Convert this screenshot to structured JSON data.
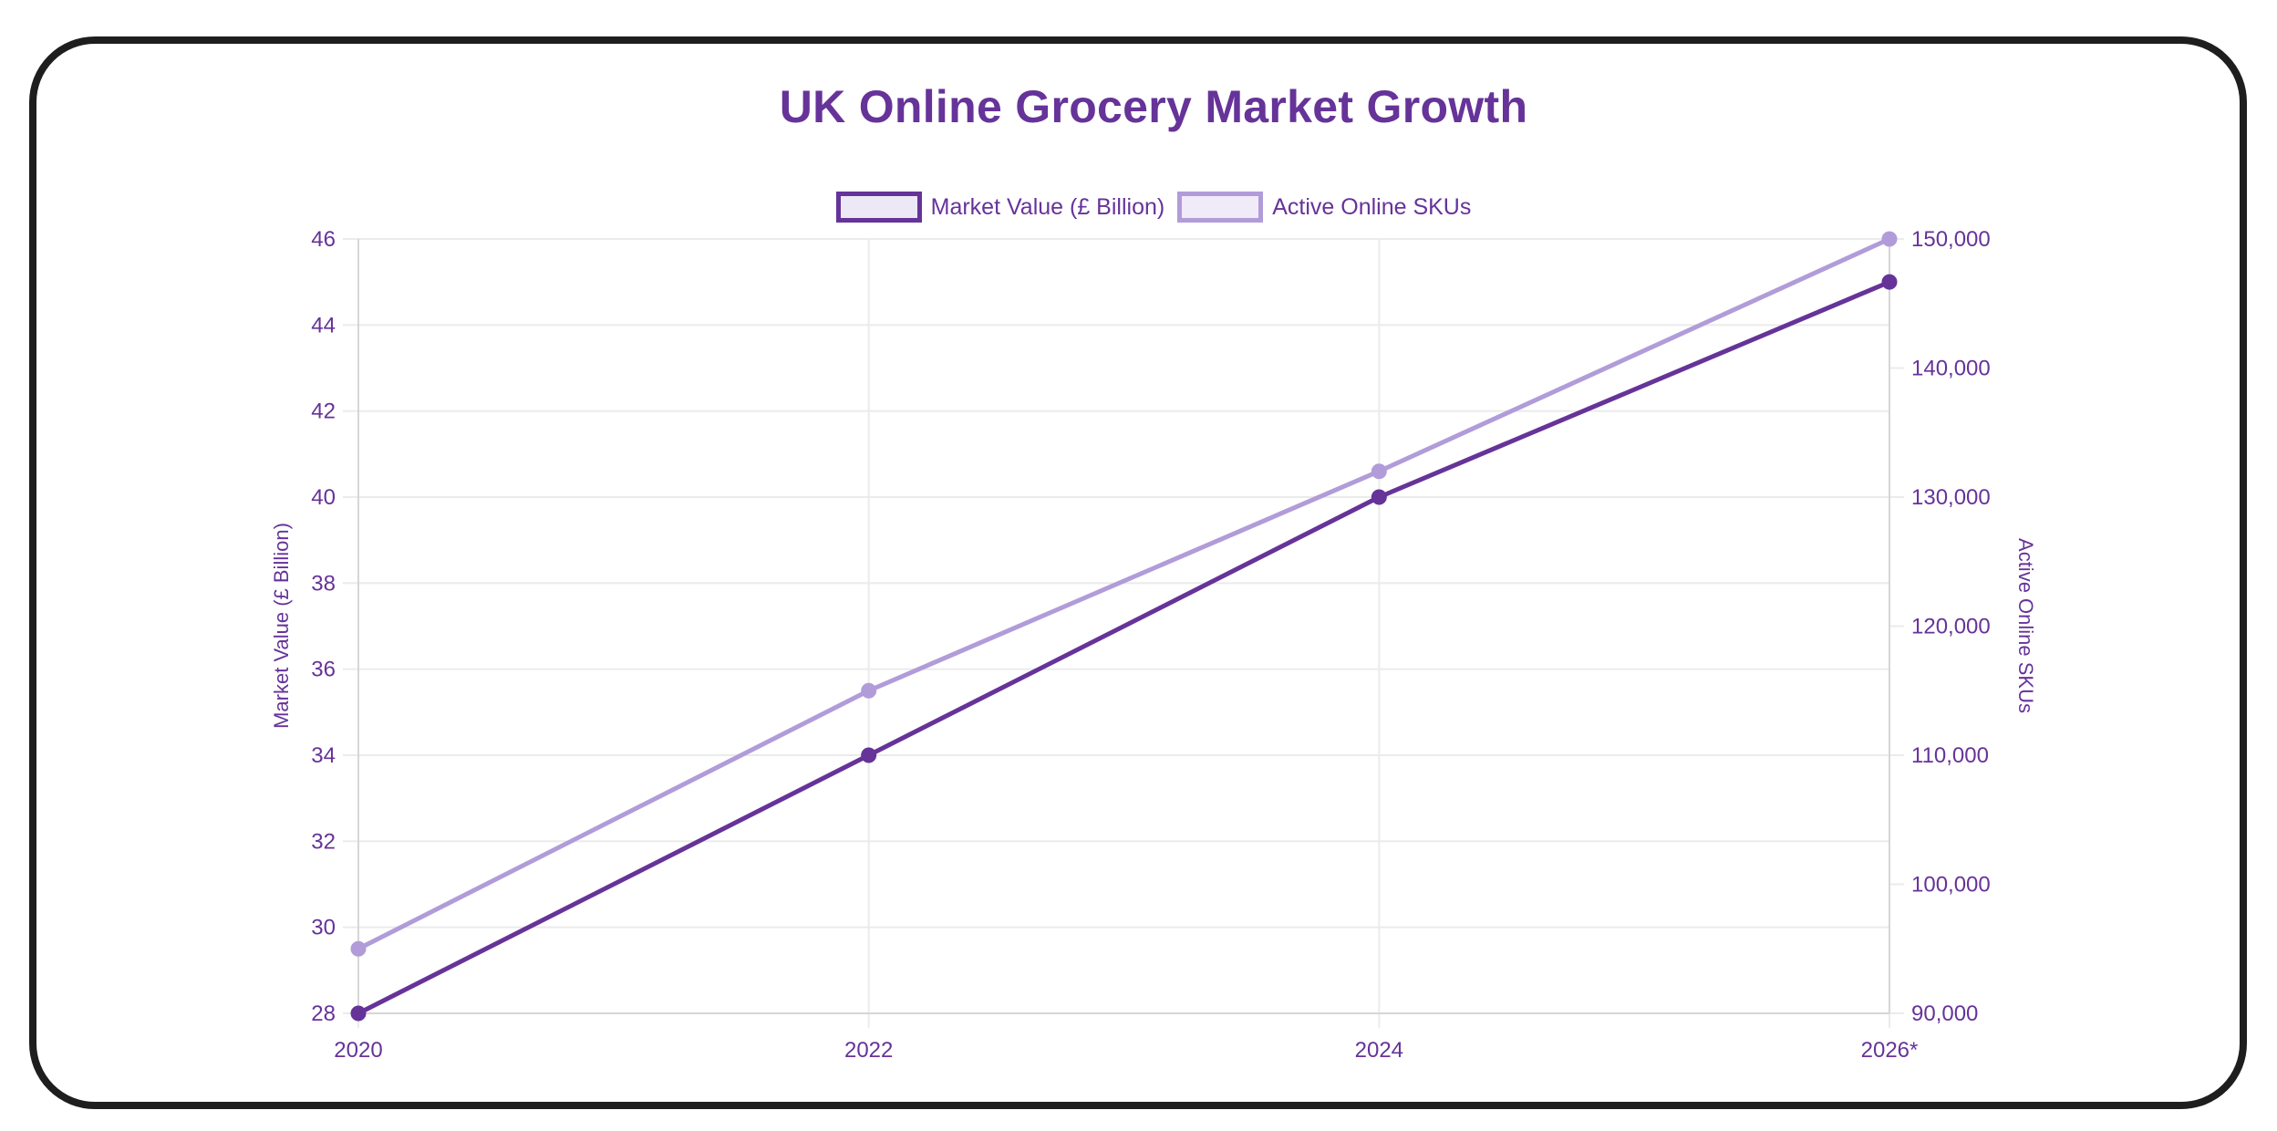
{
  "chart_data": {
    "type": "line",
    "title": "UK Online Grocery Market Growth",
    "categories": [
      "2020",
      "2022",
      "2024",
      "2026*"
    ],
    "series": [
      {
        "name": "Market Value (£ Billion)",
        "axis": "left",
        "values": [
          28,
          34,
          40,
          45
        ],
        "color": "#663399",
        "fill": "#ece8f6"
      },
      {
        "name": "Active Online SKUs",
        "axis": "right",
        "values": [
          95000,
          115000,
          132000,
          150000
        ],
        "color": "#b19cd9",
        "fill": "#f1eaf9"
      }
    ],
    "xlabel": "",
    "ylabel": "Market Value (£ Billion)",
    "y2label": "Active Online SKUs",
    "ylim": [
      28,
      46
    ],
    "y2lim": [
      90000,
      150000
    ],
    "yticks": [
      "28",
      "30",
      "32",
      "34",
      "36",
      "38",
      "40",
      "42",
      "44",
      "46"
    ],
    "y2ticks": [
      "90,000",
      "100,000",
      "110,000",
      "120,000",
      "130,000",
      "140,000",
      "150,000"
    ],
    "grid": true,
    "legend_position": "top"
  },
  "title": "UK Online Grocery Market Growth",
  "legend": [
    {
      "label": "Market Value (£ Billion)"
    },
    {
      "label": "Active Online SKUs"
    }
  ],
  "axes": {
    "left_title": "Market Value (£ Billion)",
    "right_title": "Active Online SKUs"
  },
  "colors": {
    "primary": "#663399",
    "secondary": "#b19cd9",
    "grid": "#ebebeb",
    "frame": "#1e1e1e"
  }
}
